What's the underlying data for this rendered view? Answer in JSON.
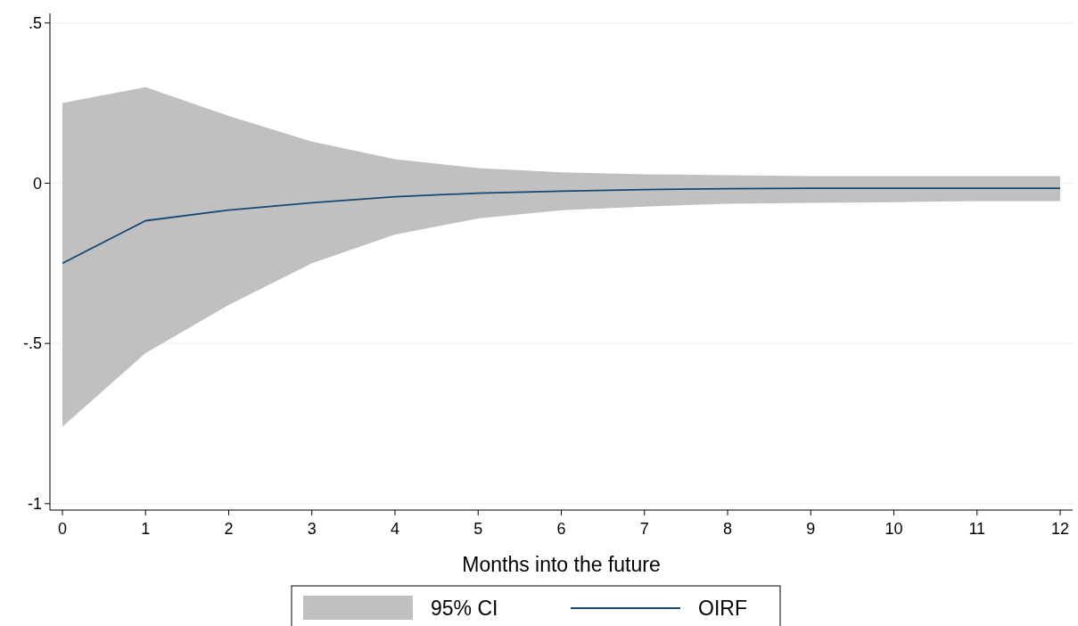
{
  "chart_data": {
    "type": "line",
    "xlabel": "Months into the future",
    "x": [
      0,
      1,
      2,
      3,
      4,
      5,
      6,
      7,
      8,
      9,
      10,
      11,
      12
    ],
    "series": [
      {
        "name": "OIRF",
        "color": "#1a476f",
        "values": [
          -0.25,
          -0.117,
          -0.084,
          -0.061,
          -0.042,
          -0.031,
          -0.025,
          -0.02,
          -0.017,
          -0.016,
          -0.016,
          -0.016,
          -0.016
        ],
        "lower": [
          -0.76,
          -0.53,
          -0.38,
          -0.25,
          -0.16,
          -0.11,
          -0.084,
          -0.073,
          -0.064,
          -0.061,
          -0.059,
          -0.056,
          -0.056
        ],
        "upper": [
          0.25,
          0.3,
          0.21,
          0.13,
          0.075,
          0.047,
          0.034,
          0.028,
          0.025,
          0.022,
          0.022,
          0.022,
          0.022
        ]
      }
    ],
    "annotations": [
      "95% CI"
    ],
    "xlim": [
      -0.15,
      12.15
    ],
    "xticks": [
      0,
      1,
      2,
      3,
      4,
      5,
      6,
      7,
      8,
      9,
      10,
      11,
      12
    ],
    "ylim": [
      -1.02,
      0.53
    ],
    "yticks": [
      {
        "value": -1,
        "label": "-1"
      },
      {
        "value": -0.5,
        "label": "-.5"
      },
      0,
      {
        "value": 0.5,
        "label": ".5"
      }
    ],
    "grid": "y",
    "legend": "bottom"
  }
}
